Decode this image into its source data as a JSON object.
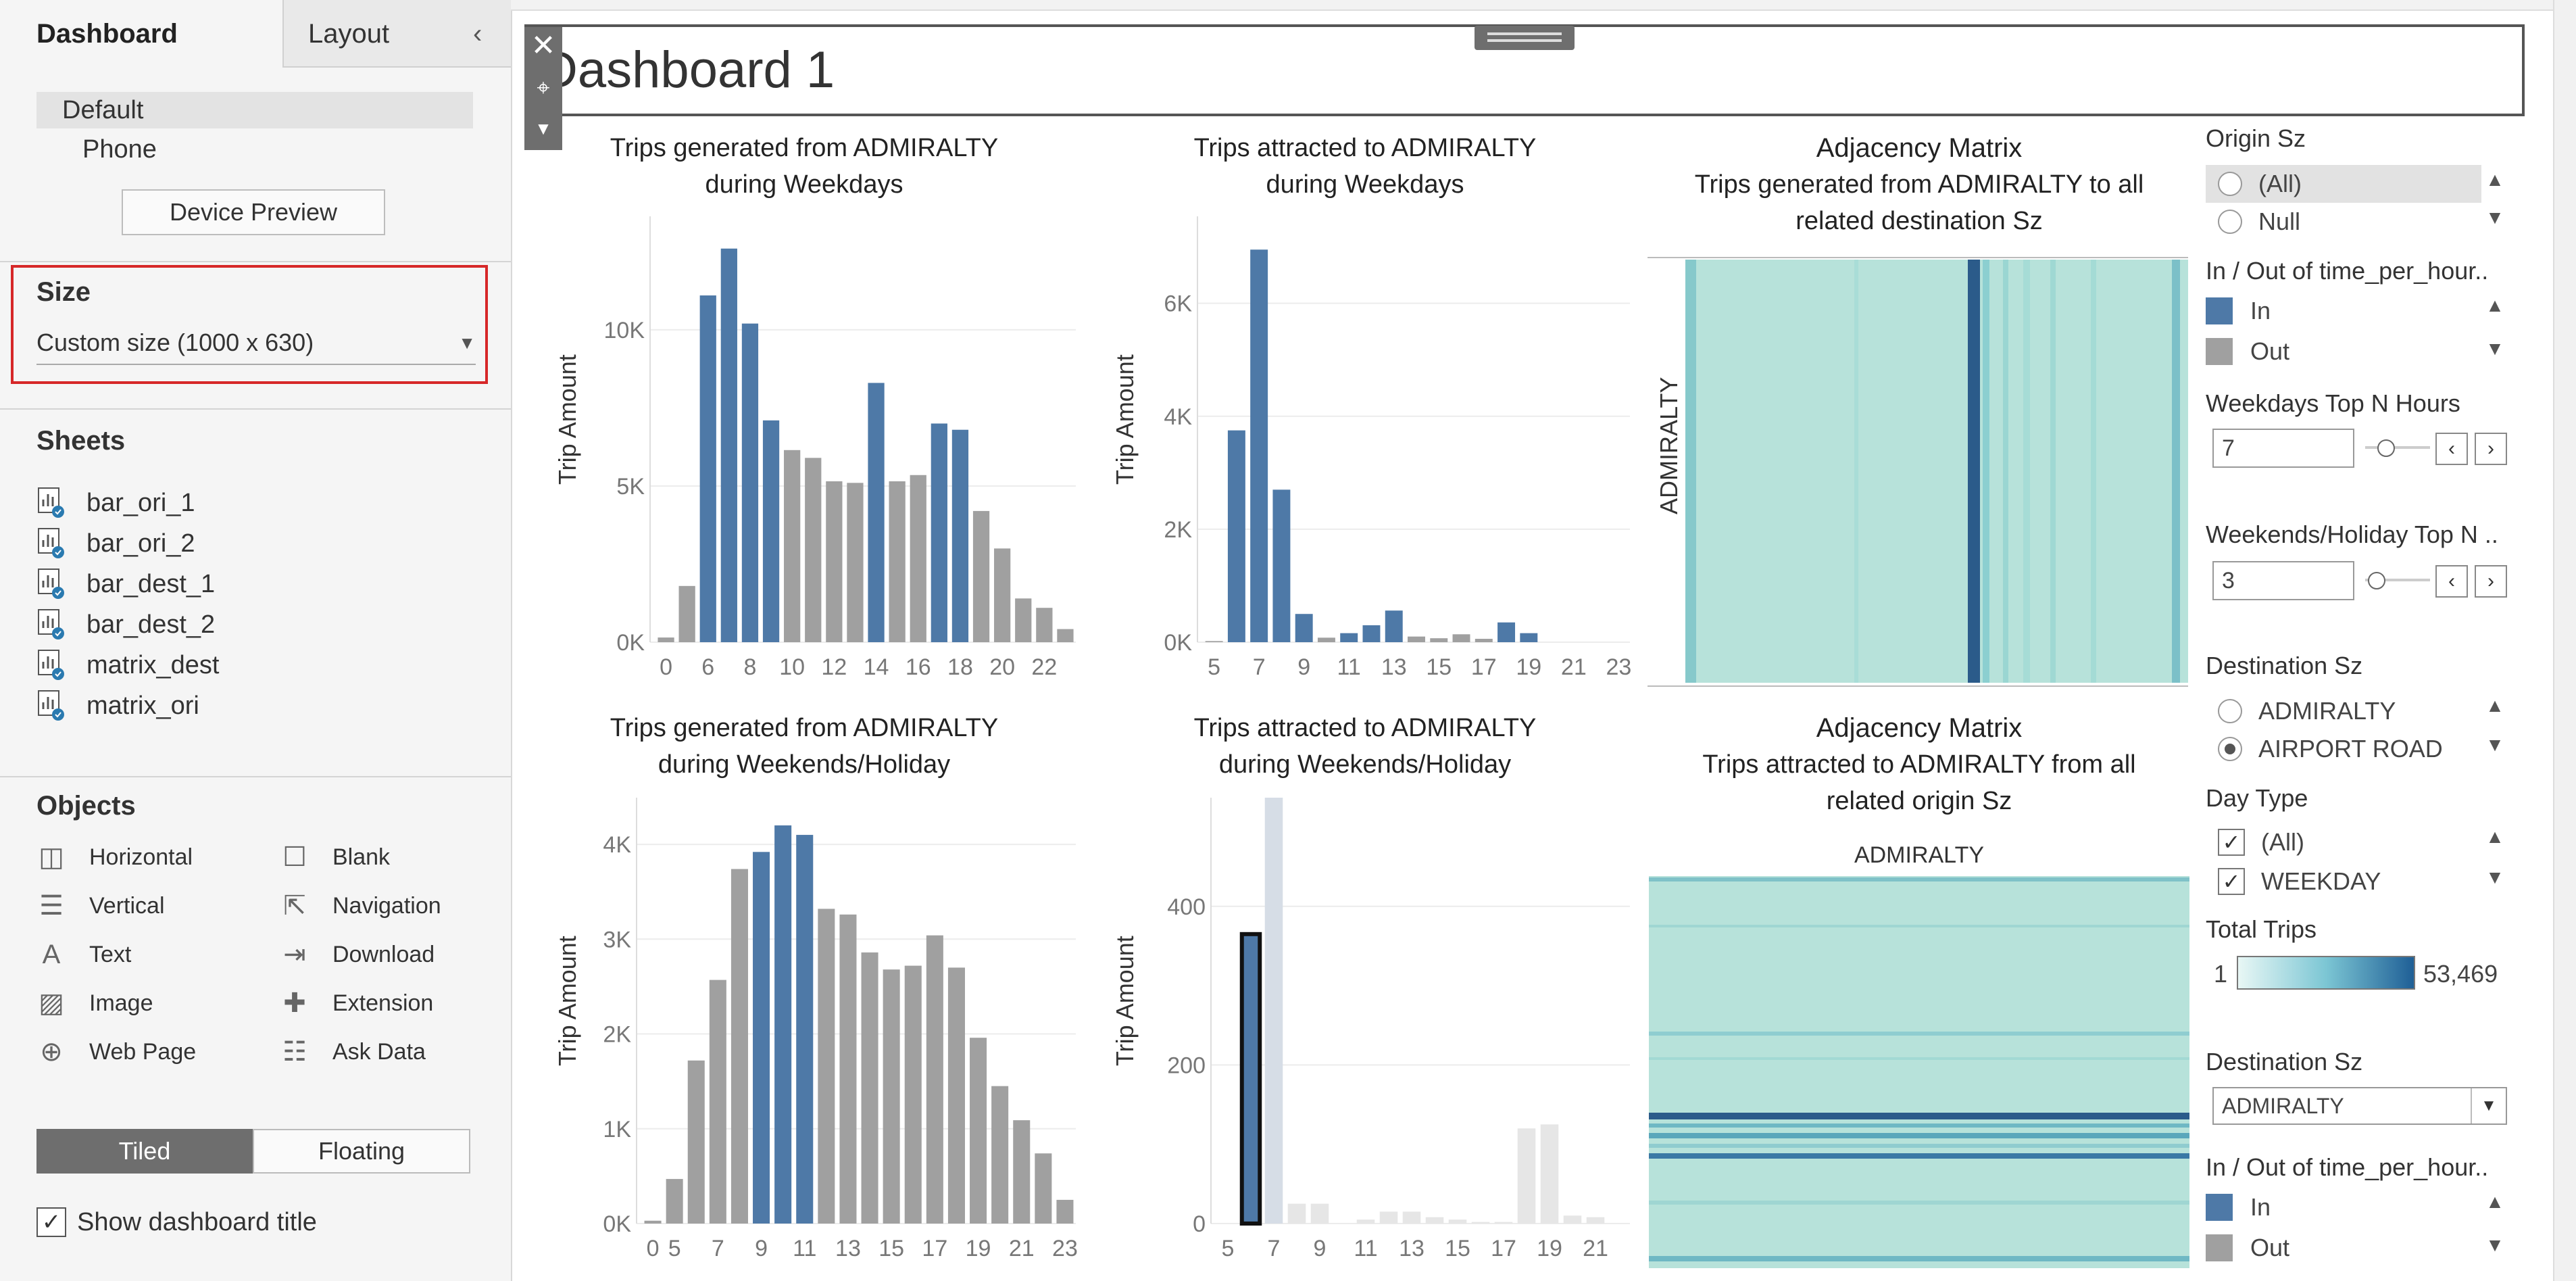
{
  "left_panel": {
    "tabs": [
      "Dashboard",
      "Layout"
    ],
    "collapse_icon": "chevron-left-icon",
    "devices": [
      "Default",
      "Phone"
    ],
    "device_preview_label": "Device Preview",
    "size": {
      "heading": "Size",
      "value": "Custom size (1000 x 630)"
    },
    "sheets": {
      "heading": "Sheets",
      "items": [
        "bar_ori_1",
        "bar_ori_2",
        "bar_dest_1",
        "bar_dest_2",
        "matrix_dest",
        "matrix_ori"
      ]
    },
    "objects": {
      "heading": "Objects",
      "items": [
        {
          "label": "Horizontal",
          "icon": "horizontal-icon"
        },
        {
          "label": "Blank",
          "icon": "blank-icon"
        },
        {
          "label": "Vertical",
          "icon": "vertical-icon"
        },
        {
          "label": "Navigation",
          "icon": "navigation-icon"
        },
        {
          "label": "Text",
          "icon": "text-icon"
        },
        {
          "label": "Download",
          "icon": "download-icon"
        },
        {
          "label": "Image",
          "icon": "image-icon"
        },
        {
          "label": "Extension",
          "icon": "extension-icon"
        },
        {
          "label": "Web Page",
          "icon": "globe-icon"
        },
        {
          "label": "Ask Data",
          "icon": "ask-data-icon"
        }
      ]
    },
    "tiled_label": "Tiled",
    "floating_label": "Floating",
    "show_title_label": "Show dashboard title",
    "show_title_checked": true
  },
  "dashboard": {
    "title": "Dashboard 1",
    "colors": {
      "blue": "#4e79a7",
      "grey": "#a0a0a0",
      "faded": "#d6dde6",
      "faded_grey": "#e6e6e6",
      "matrix_bg": "#b7e2da"
    }
  },
  "charts": {
    "c1": {
      "title_1": "Trips generated from ADMIRALTY",
      "title_2": "during Weekdays",
      "ylabel": "Trip Amount",
      "yticks": [
        "10K",
        "5K",
        "0K"
      ],
      "xticks": [
        "0",
        "6",
        "8",
        "10",
        "12",
        "14",
        "16",
        "18",
        "20",
        "22"
      ]
    },
    "c2": {
      "title_1": "Trips attracted to ADMIRALTY",
      "title_2": "during Weekdays",
      "ylabel": "Trip Amount",
      "yticks": [
        "6K",
        "4K",
        "2K",
        "0K"
      ],
      "xticks": [
        "5",
        "7",
        "9",
        "11",
        "13",
        "15",
        "17",
        "19",
        "21",
        "23"
      ]
    },
    "c3": {
      "title_1": "Trips generated from ADMIRALTY",
      "title_2": "during Weekends/Holiday",
      "ylabel": "Trip Amount",
      "yticks": [
        "4K",
        "3K",
        "2K",
        "1K",
        "0K"
      ],
      "xticks": [
        "0",
        "5",
        "7",
        "9",
        "11",
        "13",
        "15",
        "17",
        "19",
        "21",
        "23"
      ]
    },
    "c4": {
      "title_1": "Trips attracted to ADMIRALTY",
      "title_2": "during Weekends/Holiday",
      "ylabel": "Trip Amount",
      "yticks": [
        "400",
        "200",
        "0"
      ],
      "xticks": [
        "5",
        "7",
        "9",
        "11",
        "13",
        "15",
        "17",
        "19",
        "21"
      ]
    },
    "m1": {
      "title_1": "Adjacency Matrix",
      "title_2": "Trips generated from ADMIRALTY to all",
      "title_3": "related destination Sz",
      "row_label": "ADMIRALTY"
    },
    "m2": {
      "title_1": "Adjacency Matrix",
      "title_2": "Trips attracted to  ADMIRALTY from all",
      "title_3": "related origin Sz",
      "col_label": "ADMIRALTY"
    }
  },
  "chart_data": [
    {
      "type": "bar",
      "title": "Trips generated from ADMIRALTY during Weekdays",
      "ylabel": "Trip Amount",
      "ylim": [
        0,
        13200
      ],
      "x": [
        0,
        5,
        6,
        7,
        8,
        9,
        10,
        11,
        12,
        13,
        14,
        15,
        16,
        17,
        18,
        19,
        20,
        21,
        22,
        23
      ],
      "values": [
        150,
        1800,
        11100,
        12600,
        10200,
        7100,
        6150,
        5900,
        5150,
        5100,
        8300,
        5150,
        5350,
        7000,
        6800,
        4200,
        3000,
        1400,
        1100,
        420
      ],
      "highlight": [
        "grey",
        "grey",
        "blue",
        "blue",
        "blue",
        "blue",
        "grey",
        "grey",
        "grey",
        "grey",
        "blue",
        "grey",
        "grey",
        "blue",
        "blue",
        "grey",
        "grey",
        "grey",
        "grey",
        "grey"
      ]
    },
    {
      "type": "bar",
      "title": "Trips attracted to ADMIRALTY during Weekdays",
      "ylabel": "Trip Amount",
      "ylim": [
        0,
        7300
      ],
      "x": [
        5,
        6,
        7,
        8,
        9,
        10,
        11,
        12,
        13,
        14,
        15,
        16,
        17,
        18,
        19,
        20,
        21,
        22,
        23
      ],
      "values": [
        20,
        3750,
        6950,
        2700,
        500,
        80,
        160,
        300,
        560,
        100,
        70,
        140,
        60,
        350,
        160,
        0,
        0,
        0,
        0
      ],
      "highlight": [
        "grey",
        "blue",
        "blue",
        "blue",
        "blue",
        "grey",
        "blue",
        "blue",
        "blue",
        "grey",
        "grey",
        "grey",
        "grey",
        "blue",
        "blue",
        "grey",
        "grey",
        "grey",
        "grey"
      ]
    },
    {
      "type": "bar",
      "title": "Trips generated from ADMIRALTY during Weekends/Holiday",
      "ylabel": "Trip Amount",
      "ylim": [
        0,
        4350
      ],
      "x": [
        0,
        5,
        6,
        7,
        8,
        9,
        10,
        11,
        12,
        13,
        14,
        15,
        16,
        17,
        18,
        19,
        20,
        21,
        22,
        23
      ],
      "values": [
        30,
        470,
        1720,
        2570,
        3740,
        3920,
        4200,
        4100,
        3320,
        3260,
        2860,
        2680,
        2720,
        3040,
        2700,
        1960,
        1450,
        1090,
        740,
        250
      ],
      "highlight": [
        "grey",
        "grey",
        "grey",
        "grey",
        "grey",
        "blue",
        "blue",
        "blue",
        "grey",
        "grey",
        "grey",
        "grey",
        "grey",
        "grey",
        "grey",
        "grey",
        "grey",
        "grey",
        "grey",
        "grey"
      ]
    },
    {
      "type": "bar",
      "title": "Trips attracted to ADMIRALTY during Weekends/Holiday",
      "ylabel": "Trip Amount",
      "ylim": [
        0,
        520
      ],
      "x": [
        5,
        6,
        7,
        8,
        9,
        10,
        11,
        12,
        13,
        14,
        15,
        16,
        17,
        18,
        19,
        20,
        21,
        22
      ],
      "values": [
        0,
        365,
        540,
        25,
        25,
        0,
        5,
        15,
        15,
        8,
        5,
        2,
        2,
        120,
        125,
        10,
        8,
        0
      ],
      "highlight": [
        "faded",
        "blue",
        "faded",
        "faded_grey",
        "faded_grey",
        "faded_grey",
        "faded_grey",
        "faded_grey",
        "faded_grey",
        "faded_grey",
        "faded_grey",
        "faded_grey",
        "faded_grey",
        "faded_grey",
        "faded_grey",
        "faded_grey",
        "faded_grey",
        "faded_grey"
      ]
    }
  ],
  "filters": {
    "origin_sz": {
      "heading": "Origin Sz",
      "options": [
        "(All)",
        "Null"
      ]
    },
    "in_out_1": {
      "heading": "In / Out of time_per_hour..",
      "options": [
        {
          "label": "In",
          "color": "#4e79a7"
        },
        {
          "label": "Out",
          "color": "#a0a0a0"
        }
      ]
    },
    "weekdays_top": {
      "heading": "Weekdays Top N Hours",
      "value": "7"
    },
    "weekends_top": {
      "heading": "Weekends/Holiday Top N ..",
      "value": "3"
    },
    "dest_sz_radio": {
      "heading": "Destination Sz",
      "options": [
        "ADMIRALTY",
        "AIRPORT ROAD"
      ],
      "selected": "AIRPORT ROAD"
    },
    "day_type": {
      "heading": "Day Type",
      "options": [
        "(All)",
        "WEEKDAY"
      ]
    },
    "total_trips": {
      "heading": "Total Trips",
      "min": "1",
      "max": "53,469"
    },
    "dest_sz_dropdown": {
      "heading": "Destination Sz",
      "value": "ADMIRALTY"
    },
    "in_out_2": {
      "heading": "In / Out of time_per_hour..",
      "options": [
        {
          "label": "In",
          "color": "#4e79a7"
        },
        {
          "label": "Out",
          "color": "#a0a0a0"
        }
      ]
    }
  }
}
